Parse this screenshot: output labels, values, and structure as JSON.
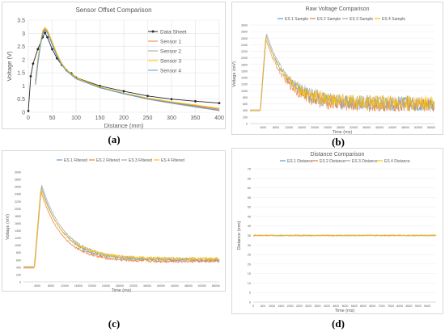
{
  "captions": {
    "a": "(a)",
    "b": "(b)",
    "c": "(c)",
    "d": "(d)"
  },
  "chart_data": [
    {
      "id": "a",
      "type": "line",
      "title": "Sensor Offset Comparison",
      "xlabel": "Distance (mm)",
      "ylabel": "Voltage (V)",
      "xlim": [
        0,
        400
      ],
      "ylim": [
        0,
        3.5
      ],
      "xticks": [
        "0",
        "50",
        "100",
        "150",
        "200",
        "250",
        "300",
        "350",
        "400"
      ],
      "yticks": [
        "0",
        "0.5",
        "1",
        "1.5",
        "2",
        "2.5",
        "3",
        "3.5"
      ],
      "grid": true,
      "legend": "top-right",
      "series": [
        {
          "name": "Data Sheet",
          "color": "#262626",
          "markers": true,
          "x": [
            0,
            5,
            10,
            20,
            30,
            35,
            40,
            50,
            60,
            70,
            80,
            90,
            100,
            150,
            200,
            250,
            300,
            350,
            400
          ],
          "y": [
            0.05,
            1.37,
            1.85,
            2.4,
            2.85,
            3.02,
            2.85,
            2.4,
            2.05,
            1.8,
            1.6,
            1.48,
            1.32,
            1.0,
            0.8,
            0.62,
            0.5,
            0.42,
            0.35
          ]
        },
        {
          "name": "Sensor 1",
          "color": "#ed7d31",
          "x": [
            15,
            20,
            25,
            30,
            35,
            40,
            50,
            60,
            70,
            80,
            90,
            100,
            150,
            200,
            250,
            300,
            350,
            400
          ],
          "y": [
            1.2,
            2.0,
            2.6,
            3.05,
            3.2,
            3.1,
            2.65,
            2.2,
            1.85,
            1.6,
            1.45,
            1.3,
            0.95,
            0.72,
            0.52,
            0.38,
            0.25,
            0.12
          ]
        },
        {
          "name": "Sensor 2",
          "color": "#a5a5a5",
          "x": [
            15,
            20,
            25,
            30,
            35,
            40,
            50,
            60,
            70,
            80,
            90,
            100,
            150,
            200,
            250,
            300,
            350,
            400
          ],
          "y": [
            1.1,
            1.9,
            2.55,
            3.0,
            3.15,
            3.05,
            2.6,
            2.15,
            1.82,
            1.58,
            1.43,
            1.28,
            0.94,
            0.7,
            0.5,
            0.34,
            0.2,
            0.06
          ]
        },
        {
          "name": "Sensor 3",
          "color": "#ffc000",
          "x": [
            15,
            20,
            25,
            30,
            35,
            40,
            50,
            60,
            70,
            80,
            90,
            100,
            150,
            200,
            250,
            300,
            350,
            400
          ],
          "y": [
            1.15,
            1.95,
            2.6,
            3.1,
            3.22,
            3.12,
            2.68,
            2.22,
            1.86,
            1.62,
            1.46,
            1.31,
            0.96,
            0.73,
            0.54,
            0.4,
            0.28,
            0.15
          ]
        },
        {
          "name": "Sensor 4",
          "color": "#5b9bd5",
          "x": [
            15,
            20,
            25,
            30,
            35,
            40,
            50,
            60,
            70,
            80,
            90,
            100,
            150,
            200,
            250,
            300,
            350,
            400
          ],
          "y": [
            1.05,
            1.85,
            2.5,
            2.98,
            3.12,
            3.02,
            2.58,
            2.13,
            1.8,
            1.57,
            1.42,
            1.27,
            0.93,
            0.71,
            0.51,
            0.36,
            0.22,
            0.08
          ]
        }
      ]
    },
    {
      "id": "b",
      "type": "line",
      "title": "Raw Voltage Comparison",
      "xlabel": "Time (ms)",
      "ylabel": "Voltage (mV)",
      "xlim": [
        0,
        57000
      ],
      "ylim": [
        0,
        3000
      ],
      "xticks": [
        "4000",
        "8000",
        "12000",
        "16000",
        "20000",
        "24000",
        "28000",
        "32000",
        "36000",
        "40000",
        "44000",
        "48000",
        "52000",
        "56000"
      ],
      "xtick_values": [
        4000,
        8000,
        12000,
        16000,
        20000,
        24000,
        28000,
        32000,
        36000,
        40000,
        44000,
        48000,
        52000,
        56000
      ],
      "yticks": [
        "0",
        "200",
        "400",
        "600",
        "800",
        "1000",
        "1200",
        "1400",
        "1600",
        "1800",
        "2000",
        "2200",
        "2400",
        "2600",
        "2800",
        "3000"
      ],
      "grid": true,
      "legend": "top",
      "noise": 220,
      "series": [
        {
          "name": "ES 1 Sample",
          "color": "#5b9bd5",
          "peak": 2700,
          "peak_t": 5000,
          "onset": 3200,
          "base": 400,
          "tail": 600,
          "tau": 6500
        },
        {
          "name": "ES 2 Sample",
          "color": "#ed7d31",
          "peak": 2600,
          "peak_t": 4800,
          "onset": 3100,
          "base": 380,
          "tail": 560,
          "tau": 6300
        },
        {
          "name": "ES 3 Sample",
          "color": "#a5a5a5",
          "peak": 2750,
          "peak_t": 5100,
          "onset": 3300,
          "base": 420,
          "tail": 620,
          "tau": 6800
        },
        {
          "name": "ES 4 Sample",
          "color": "#ffc000",
          "peak": 2650,
          "peak_t": 4900,
          "onset": 3200,
          "base": 400,
          "tail": 640,
          "tau": 6600
        }
      ]
    },
    {
      "id": "c",
      "type": "line",
      "title": "",
      "xlabel": "Time (ms)",
      "ylabel": "Voltage (mV)",
      "xlim": [
        0,
        57000
      ],
      "ylim": [
        0,
        3000
      ],
      "xticks": [
        "4000",
        "8000",
        "12000",
        "16000",
        "20000",
        "24000",
        "28000",
        "32000",
        "36000",
        "40000",
        "44000",
        "48000",
        "52000",
        "56000"
      ],
      "xtick_values": [
        4000,
        8000,
        12000,
        16000,
        20000,
        24000,
        28000,
        32000,
        36000,
        40000,
        44000,
        48000,
        52000,
        56000
      ],
      "yticks": [
        "0",
        "200",
        "400",
        "600",
        "800",
        "1000",
        "1200",
        "1400",
        "1600",
        "1800",
        "2000",
        "2200",
        "2400",
        "2600",
        "2800",
        "3000"
      ],
      "grid": false,
      "legend": "top",
      "noise": 35,
      "series": [
        {
          "name": "ES 1 Filtered",
          "color": "#5b9bd5",
          "peak": 2600,
          "peak_t": 5200,
          "onset": 3200,
          "base": 400,
          "tail": 600,
          "tau": 6500
        },
        {
          "name": "ES 2 Filtered",
          "color": "#ed7d31",
          "peak": 2500,
          "peak_t": 5000,
          "onset": 3100,
          "base": 380,
          "tail": 560,
          "tau": 6300
        },
        {
          "name": "ES 3 Filtered",
          "color": "#a5a5a5",
          "peak": 2650,
          "peak_t": 5300,
          "onset": 3300,
          "base": 420,
          "tail": 620,
          "tau": 6800
        },
        {
          "name": "ES 4 Filtered",
          "color": "#ffc000",
          "peak": 2550,
          "peak_t": 5100,
          "onset": 3200,
          "base": 400,
          "tail": 640,
          "tau": 6600
        }
      ]
    },
    {
      "id": "d",
      "type": "line",
      "title": "Distance Comparison",
      "xlabel": "Time (ms)",
      "ylabel": "Distance (mm)",
      "xlim": [
        0,
        10000
      ],
      "ylim": [
        0,
        70
      ],
      "xticks": [
        "0",
        "520",
        "1020",
        "1520",
        "2020",
        "2520",
        "3020",
        "3520",
        "4020",
        "4520",
        "5020",
        "5520",
        "6020",
        "6520",
        "7020",
        "7520",
        "8020",
        "8520",
        "9020",
        "9520"
      ],
      "xtick_values": [
        0,
        520,
        1020,
        1520,
        2020,
        2520,
        3020,
        3520,
        4020,
        4520,
        5020,
        5520,
        6020,
        6520,
        7020,
        7520,
        8020,
        8520,
        9020,
        9520
      ],
      "yticks": [
        "0",
        "5",
        "10",
        "15",
        "20",
        "25",
        "30",
        "35",
        "40",
        "45",
        "50",
        "55",
        "60",
        "65",
        "70"
      ],
      "grid": true,
      "legend": "top",
      "series": [
        {
          "name": "ES 1 Distance",
          "color": "#5b9bd5",
          "level": 35
        },
        {
          "name": "ES 2 Distance",
          "color": "#ed7d31",
          "level": 35
        },
        {
          "name": "ES 3 Distance",
          "color": "#a5a5a5",
          "level": 35
        },
        {
          "name": "ES 4 Distance",
          "color": "#ffc000",
          "level": 35
        }
      ]
    }
  ]
}
